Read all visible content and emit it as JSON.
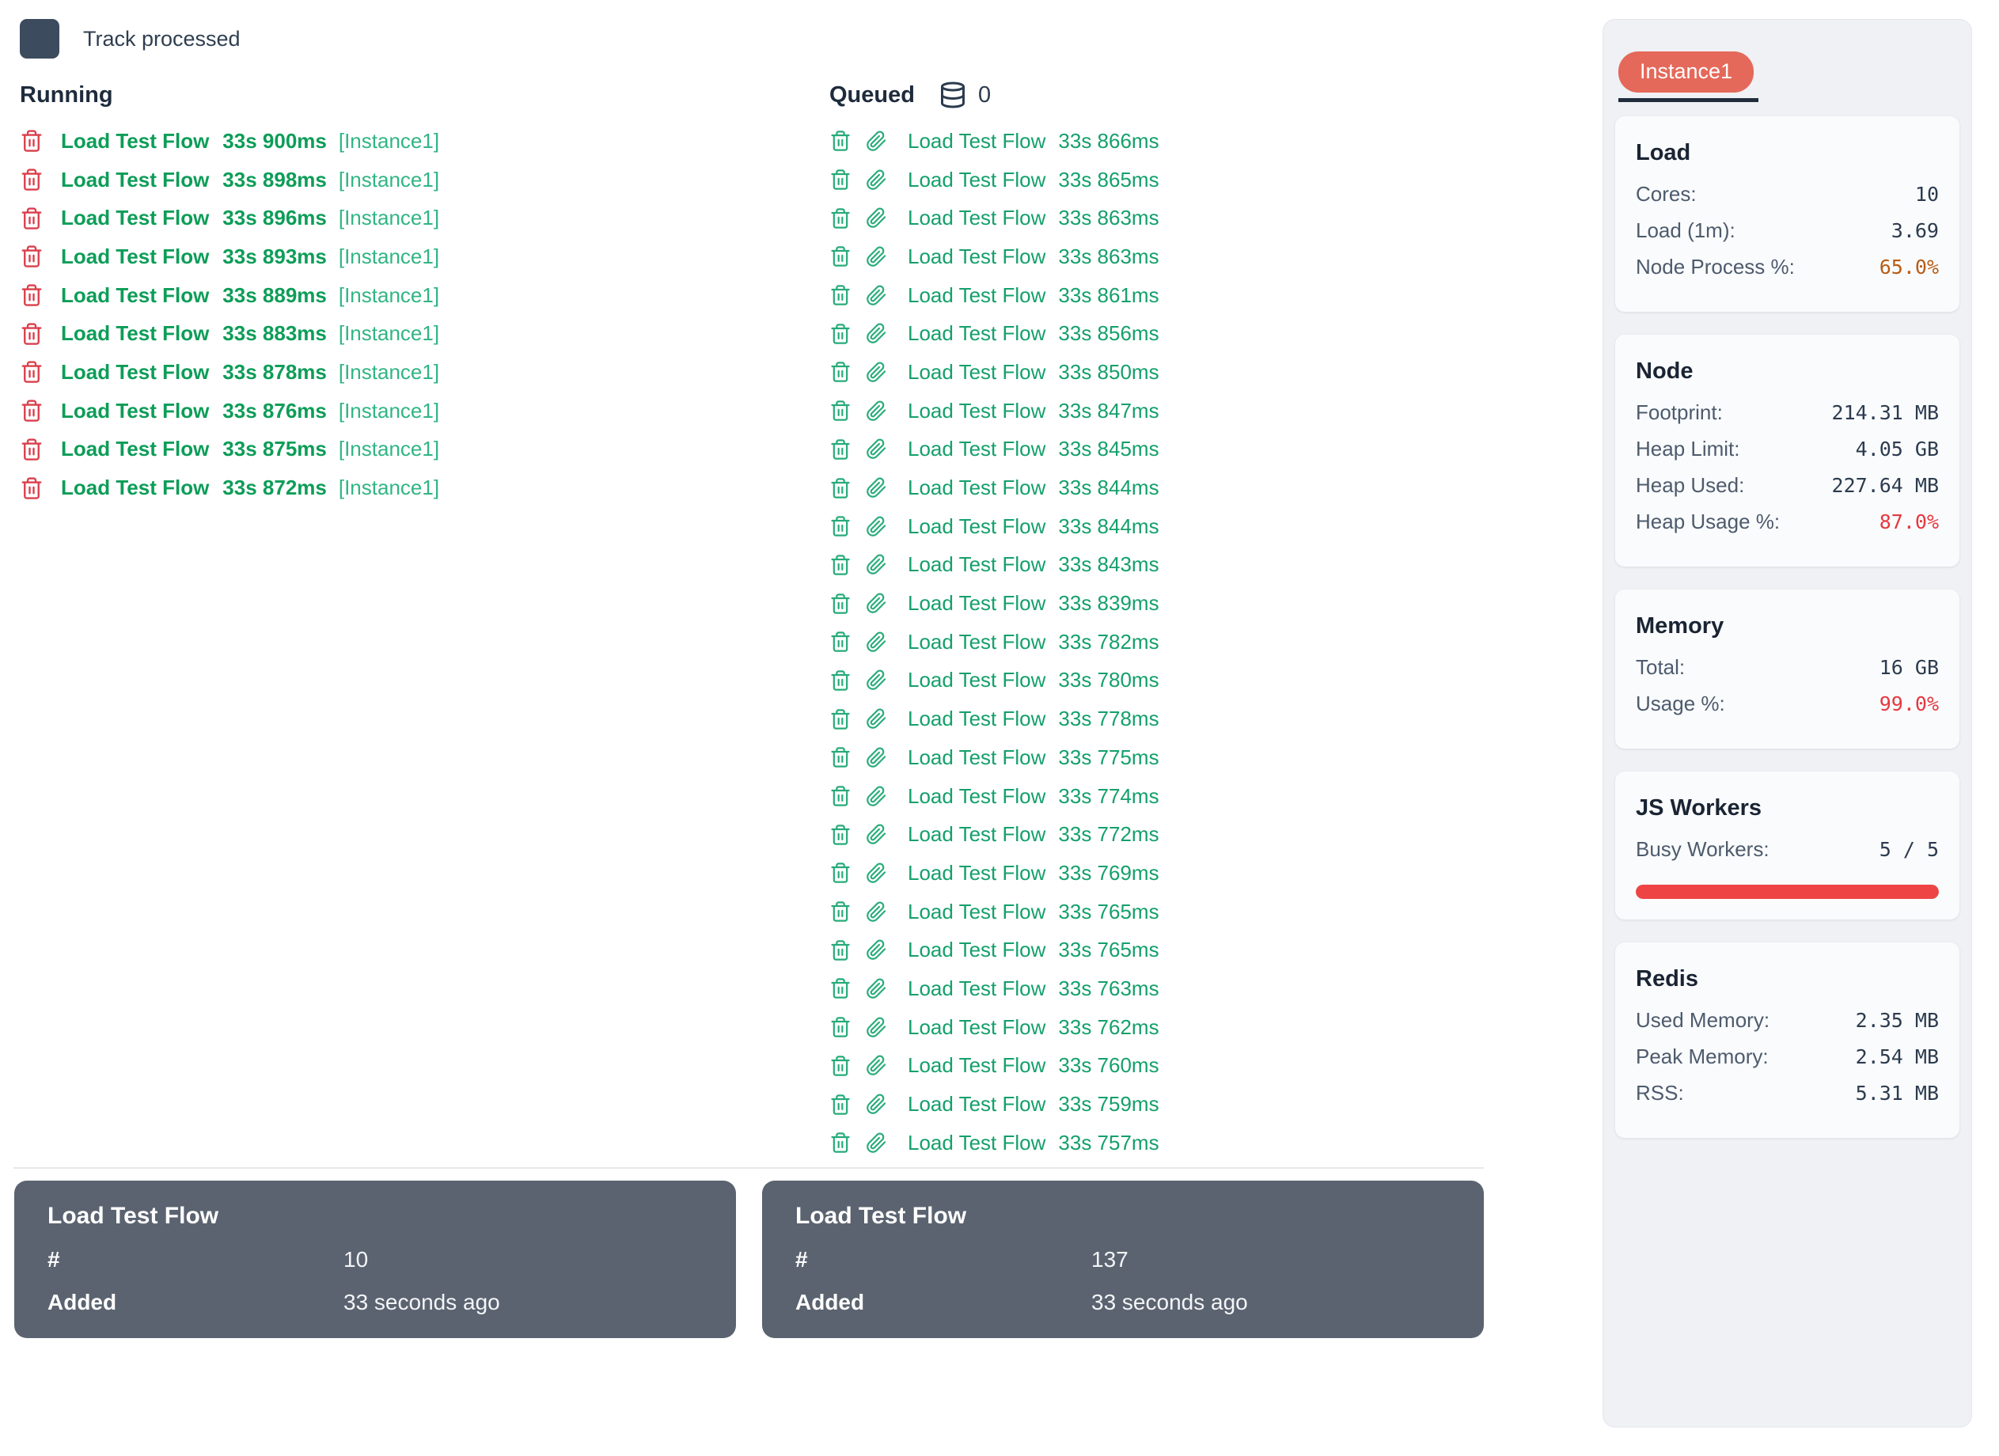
{
  "controls": {
    "track_processed_label": "Track processed"
  },
  "running": {
    "title": "Running",
    "items": [
      {
        "name": "Load Test Flow",
        "time": "33s 900ms",
        "instance": "[Instance1]"
      },
      {
        "name": "Load Test Flow",
        "time": "33s 898ms",
        "instance": "[Instance1]"
      },
      {
        "name": "Load Test Flow",
        "time": "33s 896ms",
        "instance": "[Instance1]"
      },
      {
        "name": "Load Test Flow",
        "time": "33s 893ms",
        "instance": "[Instance1]"
      },
      {
        "name": "Load Test Flow",
        "time": "33s 889ms",
        "instance": "[Instance1]"
      },
      {
        "name": "Load Test Flow",
        "time": "33s 883ms",
        "instance": "[Instance1]"
      },
      {
        "name": "Load Test Flow",
        "time": "33s 878ms",
        "instance": "[Instance1]"
      },
      {
        "name": "Load Test Flow",
        "time": "33s 876ms",
        "instance": "[Instance1]"
      },
      {
        "name": "Load Test Flow",
        "time": "33s 875ms",
        "instance": "[Instance1]"
      },
      {
        "name": "Load Test Flow",
        "time": "33s 872ms",
        "instance": "[Instance1]"
      }
    ]
  },
  "queued": {
    "title": "Queued",
    "count": "0",
    "items": [
      {
        "name": "Load Test Flow",
        "time": "33s 866ms"
      },
      {
        "name": "Load Test Flow",
        "time": "33s 865ms"
      },
      {
        "name": "Load Test Flow",
        "time": "33s 863ms"
      },
      {
        "name": "Load Test Flow",
        "time": "33s 863ms"
      },
      {
        "name": "Load Test Flow",
        "time": "33s 861ms"
      },
      {
        "name": "Load Test Flow",
        "time": "33s 856ms"
      },
      {
        "name": "Load Test Flow",
        "time": "33s 850ms"
      },
      {
        "name": "Load Test Flow",
        "time": "33s 847ms"
      },
      {
        "name": "Load Test Flow",
        "time": "33s 845ms"
      },
      {
        "name": "Load Test Flow",
        "time": "33s 844ms"
      },
      {
        "name": "Load Test Flow",
        "time": "33s 844ms"
      },
      {
        "name": "Load Test Flow",
        "time": "33s 843ms"
      },
      {
        "name": "Load Test Flow",
        "time": "33s 839ms"
      },
      {
        "name": "Load Test Flow",
        "time": "33s 782ms"
      },
      {
        "name": "Load Test Flow",
        "time": "33s 780ms"
      },
      {
        "name": "Load Test Flow",
        "time": "33s 778ms"
      },
      {
        "name": "Load Test Flow",
        "time": "33s 775ms"
      },
      {
        "name": "Load Test Flow",
        "time": "33s 774ms"
      },
      {
        "name": "Load Test Flow",
        "time": "33s 772ms"
      },
      {
        "name": "Load Test Flow",
        "time": "33s 769ms"
      },
      {
        "name": "Load Test Flow",
        "time": "33s 765ms"
      },
      {
        "name": "Load Test Flow",
        "time": "33s 765ms"
      },
      {
        "name": "Load Test Flow",
        "time": "33s 763ms"
      },
      {
        "name": "Load Test Flow",
        "time": "33s 762ms"
      },
      {
        "name": "Load Test Flow",
        "time": "33s 760ms"
      },
      {
        "name": "Load Test Flow",
        "time": "33s 759ms"
      },
      {
        "name": "Load Test Flow",
        "time": "33s 757ms"
      }
    ]
  },
  "sidebar": {
    "instance_tab": "Instance1",
    "cards": [
      {
        "title": "Load",
        "rows": [
          {
            "label": "Cores:",
            "value": "10",
            "color": "default"
          },
          {
            "label": "Load (1m):",
            "value": "3.69",
            "color": "default"
          },
          {
            "label": "Node Process %:",
            "value": "65.0%",
            "color": "warn"
          }
        ]
      },
      {
        "title": "Node",
        "rows": [
          {
            "label": "Footprint:",
            "value": "214.31 MB",
            "color": "default"
          },
          {
            "label": "Heap Limit:",
            "value": "4.05 GB",
            "color": "default"
          },
          {
            "label": "Heap Used:",
            "value": "227.64 MB",
            "color": "default"
          },
          {
            "label": "Heap Usage %:",
            "value": "87.0%",
            "color": "danger"
          }
        ]
      },
      {
        "title": "Memory",
        "rows": [
          {
            "label": "Total:",
            "value": "16 GB",
            "color": "default"
          },
          {
            "label": "Usage %:",
            "value": "99.0%",
            "color": "danger"
          }
        ]
      },
      {
        "title": "JS Workers",
        "rows": [
          {
            "label": "Busy Workers:",
            "value": "5 / 5",
            "color": "default"
          }
        ],
        "progress": {
          "percent": 100,
          "color": "#ef4444"
        }
      },
      {
        "title": "Redis",
        "rows": [
          {
            "label": "Used Memory:",
            "value": "2.35 MB",
            "color": "default"
          },
          {
            "label": "Peak Memory:",
            "value": "2.54 MB",
            "color": "default"
          },
          {
            "label": "RSS:",
            "value": "5.31 MB",
            "color": "default"
          }
        ]
      }
    ]
  },
  "footer_cards": [
    {
      "title": "Load Test Flow",
      "rows": [
        {
          "label": "#",
          "value": "10"
        },
        {
          "label": "Added",
          "value": "33 seconds ago"
        }
      ]
    },
    {
      "title": "Load Test Flow",
      "rows": [
        {
          "label": "#",
          "value": "137"
        },
        {
          "label": "Added",
          "value": "33 seconds ago"
        }
      ]
    }
  ],
  "icons": {
    "checkbox": "square-checkbox",
    "running_delete": "trash-icon",
    "queued_delete": "trash-icon",
    "queued_attachment": "paperclip-icon",
    "queued_count": "database-icon"
  },
  "colors": {
    "running_green": "#0d9d58",
    "queued_green": "#14a06c",
    "instance_green": "#31b585",
    "trash_red": "#da3f4b",
    "instance_tab_pill": "#e4695a",
    "tab_underline": "#212c3d",
    "warn_orange": "#b85c14",
    "danger_red": "#e5383f",
    "workers_bar_red": "#ef4444",
    "footer_card_gray": "#5b6370",
    "sidebar_panel_gray": "#f0f1f4"
  }
}
